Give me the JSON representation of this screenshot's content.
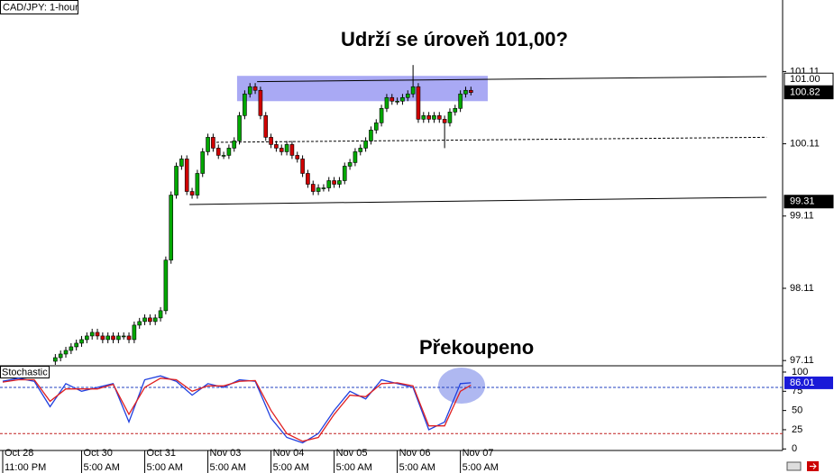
{
  "chart_data": {
    "type": "candlestick",
    "title": "CAD/JPY: 1-hour",
    "annotations": [
      "Udrží se úroveň 101,00?",
      "Překoupeno"
    ],
    "up_color": "#00a800",
    "down_color": "#d00000",
    "xlim": [
      -1.03,
      296.5
    ],
    "ylim": [
      97.05,
      102.1
    ],
    "yticks": [
      101.11,
      100.11,
      99.11,
      98.11,
      97.11
    ],
    "xticks": [
      {
        "value": 0,
        "label": "Oct 28"
      },
      {
        "value": 30,
        "label": "Oct 30"
      },
      {
        "value": 54,
        "label": "Oct 31"
      },
      {
        "value": 78,
        "label": "Nov 03"
      },
      {
        "value": 102,
        "label": "Nov 04"
      },
      {
        "value": 126,
        "label": "Nov 05"
      },
      {
        "value": 150,
        "label": "Nov 06"
      },
      {
        "value": 174,
        "label": "Nov 07"
      }
    ],
    "xtick_times": [
      "11:00 PM",
      "5:00 AM",
      "5:00 AM",
      "5:00 AM",
      "5:00 AM",
      "5:00 AM",
      "5:00 AM",
      "5:00 AM"
    ],
    "x": [
      20,
      22,
      24,
      26,
      28,
      30,
      32,
      34,
      36,
      38,
      40,
      42,
      44,
      46,
      48,
      50,
      52,
      54,
      56,
      58,
      60,
      62,
      64,
      66,
      68,
      70,
      72,
      74,
      76,
      78,
      80,
      82,
      84,
      86,
      88,
      90,
      92,
      94,
      96,
      98,
      100,
      102,
      104,
      106,
      108,
      110,
      112,
      114,
      116,
      118,
      120,
      122,
      124,
      126,
      128,
      130,
      132,
      134,
      136,
      138,
      140,
      142,
      144,
      146,
      148,
      150,
      152,
      154,
      156,
      158,
      160,
      162,
      164,
      166,
      168,
      170,
      172,
      174,
      176,
      178
    ],
    "open": [
      97.1,
      97.15,
      97.2,
      97.25,
      97.3,
      97.35,
      97.4,
      97.45,
      97.5,
      97.45,
      97.4,
      97.45,
      97.4,
      97.45,
      97.45,
      97.4,
      97.6,
      97.65,
      97.7,
      97.65,
      97.7,
      97.8,
      98.5,
      99.4,
      99.8,
      99.9,
      99.45,
      99.4,
      99.7,
      100.0,
      100.2,
      100.05,
      99.95,
      99.95,
      100.05,
      100.15,
      100.5,
      100.8,
      100.9,
      100.85,
      100.5,
      100.2,
      100.1,
      100.05,
      100.0,
      100.1,
      99.95,
      99.9,
      99.7,
      99.55,
      99.45,
      99.5,
      99.5,
      99.6,
      99.55,
      99.6,
      99.8,
      99.85,
      100.0,
      100.05,
      100.15,
      100.3,
      100.4,
      100.6,
      100.75,
      100.7,
      100.7,
      100.75,
      100.8,
      100.9,
      100.45,
      100.5,
      100.45,
      100.5,
      100.45,
      100.4,
      100.55,
      100.6,
      100.8,
      100.85
    ],
    "high": [
      97.2,
      97.25,
      97.3,
      97.35,
      97.4,
      97.45,
      97.5,
      97.55,
      97.55,
      97.5,
      97.5,
      97.5,
      97.5,
      97.5,
      97.5,
      97.65,
      97.7,
      97.75,
      97.75,
      97.75,
      97.85,
      98.55,
      99.45,
      99.85,
      99.95,
      99.95,
      99.5,
      99.75,
      100.05,
      100.25,
      100.25,
      100.1,
      100.0,
      100.1,
      100.2,
      100.55,
      100.85,
      100.95,
      100.95,
      100.9,
      100.55,
      100.25,
      100.15,
      100.1,
      100.15,
      100.15,
      100.0,
      99.95,
      99.75,
      99.6,
      99.55,
      99.55,
      99.65,
      99.65,
      99.65,
      99.85,
      99.9,
      100.05,
      100.1,
      100.2,
      100.35,
      100.45,
      100.65,
      100.8,
      100.8,
      100.75,
      100.8,
      100.85,
      101.2,
      100.95,
      100.55,
      100.55,
      100.55,
      100.55,
      100.5,
      100.6,
      100.65,
      100.85,
      100.9,
      100.9
    ],
    "low": [
      97.05,
      97.1,
      97.15,
      97.2,
      97.25,
      97.3,
      97.35,
      97.4,
      97.4,
      97.35,
      97.35,
      97.35,
      97.35,
      97.4,
      97.35,
      97.35,
      97.55,
      97.6,
      97.6,
      97.6,
      97.65,
      97.75,
      98.45,
      99.35,
      99.75,
      99.4,
      99.35,
      99.35,
      99.65,
      99.95,
      100.0,
      99.9,
      99.9,
      99.9,
      100.0,
      100.1,
      100.45,
      100.75,
      100.8,
      100.45,
      100.15,
      100.05,
      100.0,
      99.95,
      99.95,
      99.9,
      99.85,
      99.65,
      99.5,
      99.4,
      99.4,
      99.45,
      99.45,
      99.5,
      99.5,
      99.55,
      99.75,
      99.8,
      99.95,
      100.0,
      100.1,
      100.25,
      100.35,
      100.55,
      100.65,
      100.65,
      100.65,
      100.7,
      100.75,
      100.4,
      100.4,
      100.4,
      100.4,
      100.4,
      100.05,
      100.35,
      100.5,
      100.55,
      100.75,
      100.78
    ],
    "close": [
      97.15,
      97.2,
      97.25,
      97.3,
      97.35,
      97.4,
      97.45,
      97.5,
      97.45,
      97.4,
      97.45,
      97.4,
      97.45,
      97.45,
      97.4,
      97.6,
      97.65,
      97.7,
      97.65,
      97.7,
      97.8,
      98.5,
      99.4,
      99.8,
      99.9,
      99.45,
      99.4,
      99.7,
      100.0,
      100.2,
      100.05,
      99.95,
      99.95,
      100.05,
      100.15,
      100.5,
      100.8,
      100.9,
      100.85,
      100.5,
      100.2,
      100.1,
      100.05,
      100.0,
      100.1,
      99.95,
      99.9,
      99.7,
      99.55,
      99.45,
      99.5,
      99.5,
      99.6,
      99.55,
      99.6,
      99.8,
      99.85,
      100.0,
      100.05,
      100.15,
      100.3,
      100.4,
      100.6,
      100.75,
      100.7,
      100.7,
      100.75,
      100.8,
      100.9,
      100.45,
      100.5,
      100.45,
      100.5,
      100.45,
      100.4,
      100.55,
      100.6,
      100.8,
      100.85,
      100.82
    ],
    "price_markers": [
      {
        "value": {
          "value": 101,
          "label": "101.00"
        },
        "style": "outline"
      },
      {
        "value": 100.82,
        "style": "filled"
      },
      {
        "value": 99.31,
        "style": "filled"
      }
    ],
    "trendlines": [
      {
        "x": [
          96.7,
          290.4
        ],
        "y": [
          100.97,
          101.04
        ],
        "style": "solid"
      },
      {
        "x": [
          79.5,
          290.4
        ],
        "y": [
          100.13,
          100.2
        ],
        "style": "dashed"
      },
      {
        "x": [
          71,
          290.4
        ],
        "y": [
          99.27,
          99.37
        ],
        "style": "solid"
      }
    ],
    "zone": {
      "x": [
        89.1,
        184.4
      ],
      "y": [
        100.7,
        101.05
      ],
      "color": "#8c8cf0"
    },
    "stochastic": {
      "title": "Stochastic",
      "ylim": [
        -2,
        107
      ],
      "yticks": [
        100,
        75,
        50,
        25,
        0
      ],
      "current": 86.01,
      "levels": [
        {
          "value": 80,
          "color": "#2040c0"
        },
        {
          "value": 20,
          "color": "#c02020"
        }
      ],
      "x": [
        0,
        6,
        12,
        18,
        24,
        30,
        36,
        42,
        48,
        54,
        60,
        66,
        72,
        78,
        84,
        90,
        96,
        102,
        108,
        114,
        120,
        126,
        132,
        138,
        144,
        150,
        156,
        162,
        168,
        174,
        178
      ],
      "series": [
        {
          "color": "#1f3fdf",
          "values": [
            88,
            92,
            88,
            55,
            85,
            75,
            80,
            85,
            35,
            90,
            95,
            88,
            70,
            85,
            80,
            90,
            88,
            40,
            15,
            8,
            20,
            50,
            75,
            65,
            90,
            85,
            80,
            25,
            35,
            85,
            86
          ]
        },
        {
          "color": "#e02020",
          "values": [
            87,
            90,
            90,
            62,
            78,
            78,
            78,
            84,
            45,
            80,
            92,
            90,
            75,
            82,
            82,
            88,
            89,
            50,
            20,
            10,
            15,
            45,
            70,
            68,
            85,
            86,
            82,
            30,
            30,
            75,
            83
          ]
        }
      ]
    }
  }
}
